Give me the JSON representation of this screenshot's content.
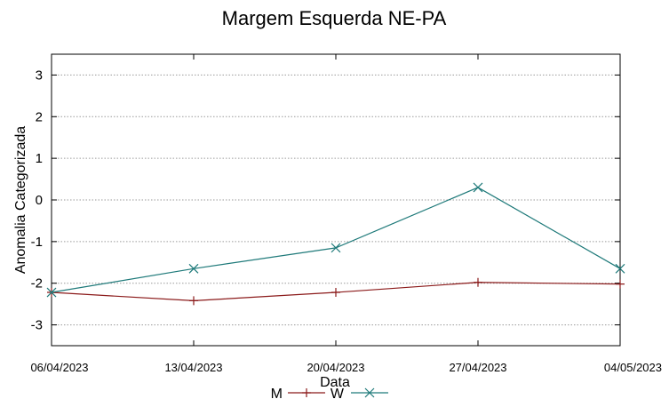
{
  "chart_data": {
    "type": "line",
    "title": "Margem Esquerda NE-PA",
    "xlabel": "Data",
    "ylabel": "Anomalia Categorizada",
    "x": [
      "06/04/2023",
      "13/04/2023",
      "20/04/2023",
      "27/04/2023",
      "04/05/2023"
    ],
    "ylim": [
      -3.5,
      3.5
    ],
    "yticks": [
      -3,
      -2,
      -1,
      0,
      1,
      2,
      3
    ],
    "grid": true,
    "legend_position": "bottom",
    "series": [
      {
        "name": "M",
        "color": "#8b1a1a",
        "marker": "plus",
        "values": [
          -2.22,
          -2.42,
          -2.22,
          -1.98,
          -2.02
        ]
      },
      {
        "name": "W",
        "color": "#1f7a7a",
        "marker": "x",
        "values": [
          -2.22,
          -1.65,
          -1.15,
          0.3,
          -1.65
        ]
      }
    ]
  }
}
